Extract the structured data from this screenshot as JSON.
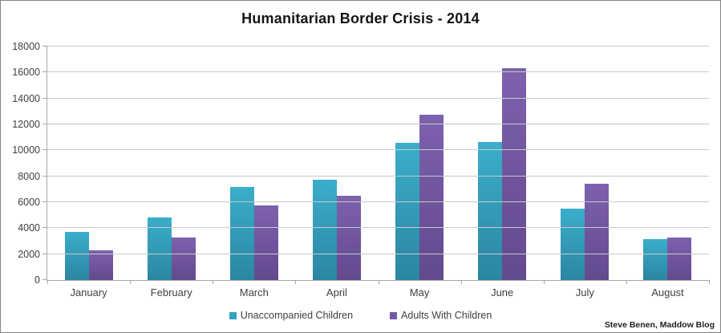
{
  "title": "Humanitarian Border Crisis - 2014",
  "attribution": "Steve Benen, Maddow Blog",
  "chart_data": {
    "type": "bar",
    "title": "Humanitarian Border Crisis - 2014",
    "categories": [
      "January",
      "February",
      "March",
      "April",
      "May",
      "June",
      "July",
      "August"
    ],
    "series": [
      {
        "name": "Unaccompanied Children",
        "color": "#31a3c1",
        "color_top": "#3aaecb",
        "color_bottom": "#2b86a1",
        "values": [
          3706,
          4845,
          7176,
          7702,
          10578,
          10626,
          5501,
          3141
        ]
      },
      {
        "name": "Adults With Children",
        "color": "#7458a5",
        "color_top": "#7d61ae",
        "color_bottom": "#63498e",
        "values": [
          2287,
          3281,
          5754,
          6513,
          12772,
          16330,
          7410,
          3295
        ]
      }
    ],
    "xlabel": "",
    "ylabel": "",
    "ylim": [
      0,
      18000
    ],
    "ytick_step": 2000,
    "grid": true,
    "legend_position": "bottom"
  }
}
